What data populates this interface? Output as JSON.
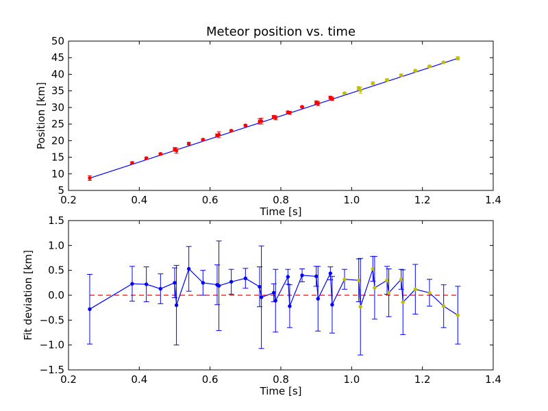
{
  "chart_data": [
    {
      "type": "line",
      "title": "Meteor position vs. time",
      "xlabel": "Time [s]",
      "ylabel": "Position [km]",
      "xlim": [
        0.2,
        1.4
      ],
      "ylim": [
        5,
        50
      ],
      "xticks": [
        "0.2",
        "0.4",
        "0.6",
        "0.8",
        "1.0",
        "1.2",
        "1.4"
      ],
      "yticks": [
        "5",
        "10",
        "15",
        "20",
        "25",
        "30",
        "35",
        "40",
        "45",
        "50"
      ],
      "grid": false,
      "fit_line": {
        "x": [
          0.26,
          1.3
        ],
        "y": [
          8.7,
          44.8
        ],
        "color": "#0000ff"
      },
      "series": [
        {
          "color": "#ff0000",
          "x": [
            0.26,
            0.38,
            0.42,
            0.46,
            0.5,
            0.505,
            0.54,
            0.58,
            0.62,
            0.625,
            0.66,
            0.7,
            0.74,
            0.745,
            0.78,
            0.785,
            0.82,
            0.825,
            0.86,
            0.9,
            0.905,
            0.94,
            0.945
          ],
          "y": [
            8.7,
            13.3,
            14.7,
            16.0,
            17.4,
            17.0,
            19.1,
            20.3,
            21.6,
            21.8,
            23.0,
            24.6,
            25.8,
            25.9,
            27.2,
            26.9,
            28.6,
            28.4,
            30.2,
            31.5,
            31.2,
            33.0,
            32.6
          ],
          "yerr": [
            0.7,
            0.35,
            0.35,
            0.3,
            0.55,
            0.8,
            0.4,
            0.25,
            0.4,
            0.9,
            0.25,
            0.25,
            0.8,
            0.9,
            0.4,
            0.6,
            0.3,
            0.45,
            0.2,
            0.5,
            0.6,
            0.4,
            0.5
          ]
        },
        {
          "color": "#bfbf00",
          "x": [
            0.98,
            1.02,
            1.025,
            1.06,
            1.1,
            1.14,
            1.18,
            1.22,
            1.26,
            1.3
          ],
          "y": [
            34.3,
            35.8,
            35.2,
            37.3,
            38.3,
            39.7,
            41.1,
            42.4,
            43.6,
            44.8
          ],
          "yerr": [
            0.2,
            0.5,
            0.9,
            0.4,
            0.3,
            0.4,
            0.25,
            0.3,
            0.2,
            0.5
          ]
        }
      ]
    },
    {
      "type": "line",
      "title": "",
      "xlabel": "Time [s]",
      "ylabel": "Fit deviation [km]",
      "xlim": [
        0.2,
        1.4
      ],
      "ylim": [
        -1.5,
        1.5
      ],
      "xticks": [
        "0.2",
        "0.4",
        "0.6",
        "0.8",
        "1.0",
        "1.2",
        "1.4"
      ],
      "yticks": [
        "−1.5",
        "−1.0",
        "−0.5",
        "0.0",
        "0.5",
        "1.0",
        "1.5"
      ],
      "grid": false,
      "zero_line": {
        "y": 0,
        "color": "#ff0000",
        "style": "dashed"
      },
      "line_color": "#0000ff",
      "series": [
        {
          "color": "#0000ff",
          "x": [
            0.26,
            0.38,
            0.42,
            0.46,
            0.5,
            0.505,
            0.54,
            0.58,
            0.62,
            0.625,
            0.66,
            0.7,
            0.74,
            0.745,
            0.78,
            0.785,
            0.82,
            0.825,
            0.86,
            0.9,
            0.905,
            0.94,
            0.945
          ],
          "y": [
            -0.28,
            0.23,
            0.22,
            0.13,
            0.25,
            -0.2,
            0.53,
            0.25,
            0.21,
            0.19,
            0.27,
            0.34,
            0.17,
            -0.04,
            0.05,
            -0.11,
            0.37,
            -0.22,
            0.4,
            0.38,
            -0.07,
            0.44,
            -0.19
          ],
          "yerr": [
            0.7,
            0.35,
            0.35,
            0.3,
            0.3,
            0.8,
            0.45,
            0.25,
            0.4,
            0.9,
            0.25,
            0.2,
            0.4,
            1.03,
            0.18,
            0.63,
            0.15,
            0.43,
            0.13,
            0.2,
            0.65,
            0.13,
            0.57
          ]
        },
        {
          "color": "#bfbf00",
          "x": [
            0.98,
            1.02,
            1.025,
            1.06,
            1.065,
            1.1,
            1.105,
            1.14,
            1.145,
            1.18,
            1.22,
            1.26,
            1.3
          ],
          "y": [
            0.32,
            0.3,
            -0.23,
            0.53,
            0.15,
            0.3,
            0.05,
            0.32,
            -0.14,
            0.12,
            0.05,
            -0.22,
            -0.4
          ],
          "yerr": [
            0.2,
            0.43,
            0.97,
            0.25,
            0.63,
            0.28,
            0.48,
            0.2,
            0.65,
            0.5,
            0.27,
            0.43,
            0.58
          ]
        }
      ]
    }
  ]
}
